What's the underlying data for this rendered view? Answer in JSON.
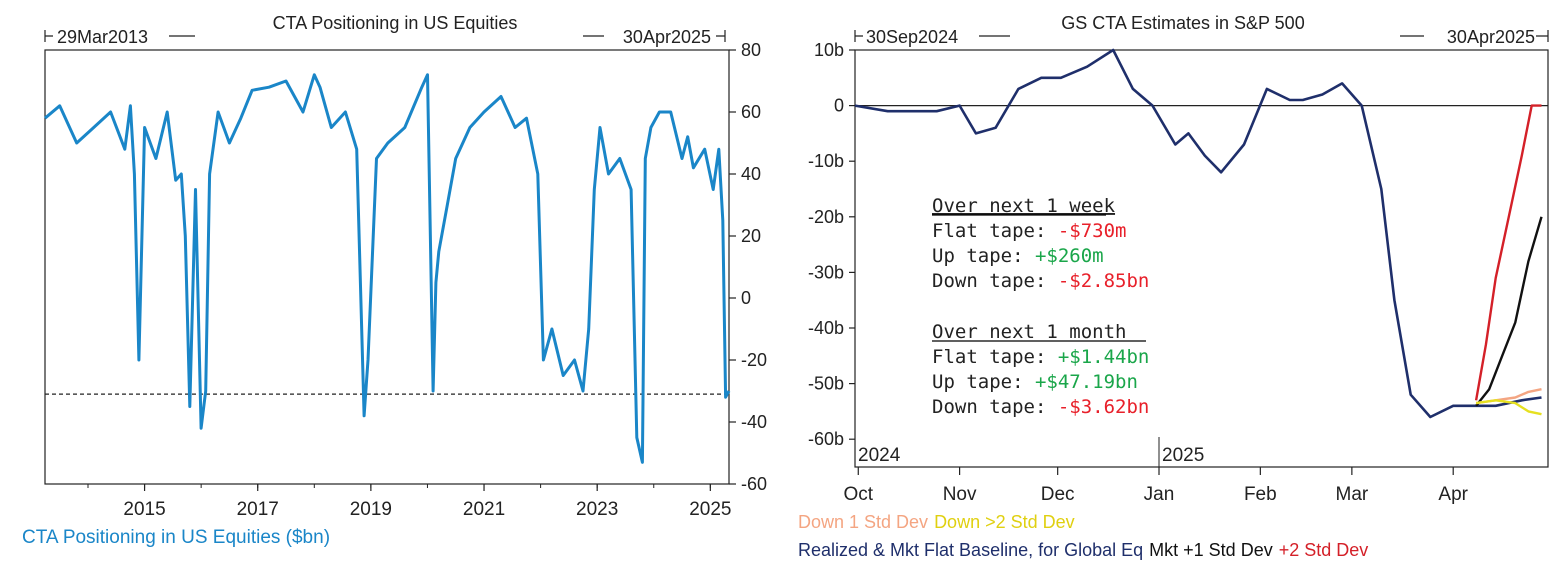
{
  "left_chart": {
    "title": "CTA Positioning in US Equities",
    "start_label": "29Mar2013",
    "end_label": "30Apr2025",
    "legend": "CTA Positioning in US Equities ($bn)",
    "series_color": "#1a86c8",
    "reference_line_value": -31
  },
  "right_chart": {
    "title": "GS CTA Estimates in S&P 500",
    "start_label": "30Sep2024",
    "end_label": "30Apr2025",
    "year_labels": [
      "2024",
      "2025"
    ],
    "annotation": {
      "week_header": "Over next 1 week",
      "week_lines": [
        {
          "label": "Flat tape: ",
          "value": "-$730m",
          "color": "#e8202a"
        },
        {
          "label": "Up tape: ",
          "value": "+$260m",
          "color": "#1aa64a"
        },
        {
          "label": "Down tape: ",
          "value": "-$2.85bn",
          "color": "#e8202a"
        }
      ],
      "month_header": "Over next 1 month",
      "month_lines": [
        {
          "label": "Flat tape: ",
          "value": "+$1.44bn",
          "color": "#1aa64a"
        },
        {
          "label": "Up tape: ",
          "value": "+$47.19bn",
          "color": "#1aa64a"
        },
        {
          "label": "Down tape: ",
          "value": "-$3.62bn",
          "color": "#e8202a"
        }
      ]
    },
    "legend": {
      "down1": "Down 1 Std Dev",
      "down2": "Down >2 Std Dev",
      "baseline": "Realized & Mkt Flat Baseline, for Global Eq",
      "up1": "Mkt +1 Std Dev",
      "up2": "+2 Std Dev"
    },
    "colors": {
      "baseline": "#1f2f6b",
      "up1": "#111111",
      "up2": "#d42028",
      "down1": "#f4a582",
      "down2": "#e6e020"
    }
  },
  "chart_data": [
    {
      "type": "line",
      "title": "CTA Positioning in US Equities",
      "xlabel": "",
      "ylabel": "",
      "x_ticks": [
        "2015",
        "2017",
        "2019",
        "2021",
        "2023",
        "2025"
      ],
      "y_ticks": [
        80,
        60,
        40,
        20,
        0,
        -20,
        -40,
        -60
      ],
      "xlim": [
        2013.24,
        2025.33
      ],
      "ylim": [
        -60,
        80
      ],
      "series": [
        {
          "name": "CTA Positioning in US Equities ($bn)",
          "x": [
            2013.24,
            2013.5,
            2013.8,
            2014.1,
            2014.4,
            2014.65,
            2014.75,
            2014.82,
            2014.9,
            2015.0,
            2015.2,
            2015.4,
            2015.55,
            2015.65,
            2015.72,
            2015.8,
            2015.9,
            2016.0,
            2016.08,
            2016.15,
            2016.3,
            2016.5,
            2016.7,
            2016.9,
            2017.2,
            2017.5,
            2017.8,
            2018.0,
            2018.1,
            2018.3,
            2018.55,
            2018.75,
            2018.88,
            2018.95,
            2019.1,
            2019.3,
            2019.6,
            2019.9,
            2020.0,
            2020.1,
            2020.15,
            2020.2,
            2020.35,
            2020.5,
            2020.75,
            2021.0,
            2021.3,
            2021.55,
            2021.75,
            2021.95,
            2022.05,
            2022.2,
            2022.4,
            2022.6,
            2022.75,
            2022.85,
            2022.95,
            2023.05,
            2023.2,
            2023.4,
            2023.6,
            2023.7,
            2023.8,
            2023.85,
            2023.95,
            2024.1,
            2024.3,
            2024.5,
            2024.6,
            2024.7,
            2024.9,
            2025.05,
            2025.15,
            2025.22,
            2025.27,
            2025.33
          ],
          "y": [
            58,
            62,
            50,
            55,
            60,
            48,
            62,
            40,
            -20,
            55,
            45,
            60,
            38,
            40,
            20,
            -35,
            35,
            -42,
            -30,
            40,
            60,
            50,
            58,
            67,
            68,
            70,
            60,
            72,
            68,
            55,
            60,
            48,
            -38,
            -20,
            45,
            50,
            55,
            68,
            72,
            -30,
            5,
            15,
            30,
            45,
            55,
            60,
            65,
            55,
            58,
            40,
            -20,
            -10,
            -25,
            -20,
            -30,
            -10,
            35,
            55,
            40,
            45,
            35,
            -45,
            -53,
            45,
            55,
            60,
            60,
            45,
            52,
            42,
            48,
            35,
            48,
            25,
            -32,
            -30
          ]
        }
      ]
    },
    {
      "type": "line",
      "title": "GS CTA Estimates in S&P 500",
      "xlabel": "",
      "ylabel": "",
      "x_ticks": [
        "Oct",
        "Nov",
        "Dec",
        "Jan",
        "Feb",
        "Mar",
        "Apr"
      ],
      "y_ticks": [
        "10b",
        "0",
        "-10b",
        "-20b",
        "-30b",
        "-40b",
        "-50b",
        "-60b"
      ],
      "xlim": [
        "2024-09-30",
        "2025-04-30"
      ],
      "ylim": [
        -65,
        10
      ],
      "series": [
        {
          "name": "Realized & Mkt Flat Baseline, for Global Eq",
          "x": [
            "2024-09-30",
            "2024-10-10",
            "2024-10-25",
            "2024-11-01",
            "2024-11-06",
            "2024-11-12",
            "2024-11-19",
            "2024-11-26",
            "2024-12-02",
            "2024-12-10",
            "2024-12-18",
            "2024-12-24",
            "2024-12-30",
            "2025-01-06",
            "2025-01-10",
            "2025-01-15",
            "2025-01-20",
            "2025-01-27",
            "2025-02-03",
            "2025-02-10",
            "2025-02-14",
            "2025-02-20",
            "2025-02-26",
            "2025-03-04",
            "2025-03-10",
            "2025-03-14",
            "2025-03-19",
            "2025-03-25",
            "2025-04-01",
            "2025-04-08",
            "2025-04-14",
            "2025-04-22",
            "2025-04-28"
          ],
          "y": [
            0,
            -1,
            -1,
            0,
            -5,
            -4,
            3,
            5,
            5,
            7,
            10,
            3,
            0,
            -7,
            -5,
            -9,
            -12,
            -7,
            3,
            1,
            1,
            2,
            4,
            0,
            -15,
            -35,
            -52,
            -56,
            -54,
            -54,
            -54,
            -53,
            -52.5
          ]
        },
        {
          "name": "Mkt +1 Std Dev",
          "x": [
            "2025-04-08",
            "2025-04-12",
            "2025-04-16",
            "2025-04-20",
            "2025-04-24",
            "2025-04-28"
          ],
          "y": [
            -54,
            -51,
            -45,
            -39,
            -28,
            -20
          ]
        },
        {
          "name": "+2 Std Dev",
          "x": [
            "2025-04-08",
            "2025-04-11",
            "2025-04-14",
            "2025-04-18",
            "2025-04-22",
            "2025-04-25",
            "2025-04-28"
          ],
          "y": [
            -53,
            -43,
            -31,
            -20,
            -9,
            0,
            0
          ]
        },
        {
          "name": "Down 1 Std Dev",
          "x": [
            "2025-04-08",
            "2025-04-14",
            "2025-04-20",
            "2025-04-24",
            "2025-04-28"
          ],
          "y": [
            -53.5,
            -53,
            -52.5,
            -51.5,
            -51
          ]
        },
        {
          "name": "Down >2 Std Dev",
          "x": [
            "2025-04-08",
            "2025-04-14",
            "2025-04-20",
            "2025-04-24",
            "2025-04-28"
          ],
          "y": [
            -53.5,
            -53,
            -53.5,
            -55,
            -55.5
          ]
        }
      ]
    }
  ]
}
